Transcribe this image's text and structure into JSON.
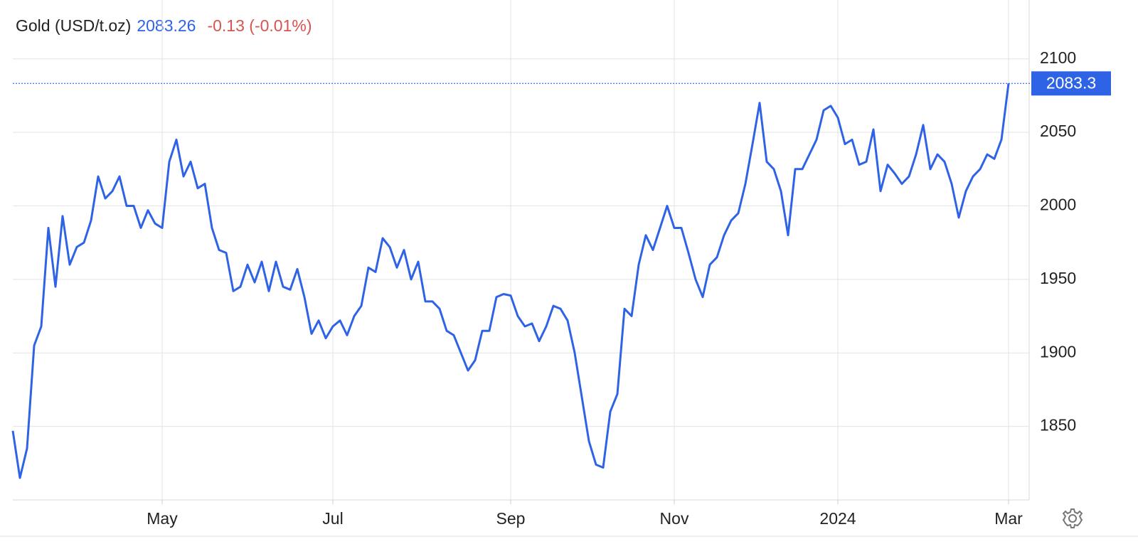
{
  "chart_data": {
    "type": "line",
    "title": "Gold (USD/t.oz)",
    "change": "-0.13 (-0.01%)",
    "categories": [
      null,
      null,
      null,
      null,
      null,
      null,
      null,
      null,
      null,
      null,
      null,
      null,
      null,
      null,
      null,
      null,
      null,
      null,
      null,
      null,
      null,
      "May",
      null,
      null,
      null,
      null,
      null,
      null,
      null,
      null,
      null,
      null,
      null,
      null,
      null,
      null,
      null,
      null,
      null,
      null,
      null,
      null,
      null,
      null,
      null,
      "Jul",
      null,
      null,
      null,
      null,
      null,
      null,
      null,
      null,
      null,
      null,
      null,
      null,
      null,
      null,
      null,
      null,
      null,
      null,
      null,
      null,
      null,
      null,
      null,
      null,
      "Sep",
      null,
      null,
      null,
      null,
      null,
      null,
      null,
      null,
      null,
      null,
      null,
      null,
      null,
      null,
      null,
      null,
      null,
      null,
      null,
      null,
      null,
      null,
      "Nov",
      null,
      null,
      null,
      null,
      null,
      null,
      null,
      null,
      null,
      null,
      null,
      null,
      null,
      null,
      null,
      null,
      null,
      null,
      null,
      null,
      null,
      null,
      "2024",
      null,
      null,
      null,
      null,
      null,
      null,
      null,
      null,
      null,
      null,
      null,
      null,
      null,
      null,
      null,
      null,
      null,
      null,
      null,
      null,
      null,
      null,
      null,
      "Mar"
    ],
    "series": [
      {
        "name": "Gold",
        "color": "#2f63e6",
        "values": [
          1847,
          1815,
          1835,
          1905,
          1918,
          1985,
          1945,
          1993,
          1960,
          1972,
          1975,
          1990,
          2020,
          2005,
          2010,
          2020,
          2000,
          2000,
          1985,
          1997,
          1988,
          1985,
          2030,
          2045,
          2020,
          2030,
          2012,
          2015,
          1985,
          1970,
          1968,
          1942,
          1945,
          1960,
          1948,
          1962,
          1942,
          1962,
          1945,
          1943,
          1957,
          1938,
          1913,
          1922,
          1910,
          1918,
          1922,
          1912,
          1925,
          1932,
          1958,
          1955,
          1978,
          1972,
          1958,
          1970,
          1950,
          1962,
          1935,
          1935,
          1930,
          1915,
          1912,
          1900,
          1888,
          1895,
          1915,
          1915,
          1938,
          1940,
          1939,
          1925,
          1918,
          1920,
          1908,
          1918,
          1932,
          1930,
          1922,
          1900,
          1870,
          1840,
          1824,
          1822,
          1860,
          1872,
          1930,
          1925,
          1960,
          1980,
          1970,
          1985,
          2000,
          1985,
          1985,
          1968,
          1950,
          1938,
          1960,
          1965,
          1980,
          1990,
          1995,
          2015,
          2042,
          2070,
          2030,
          2025,
          2010,
          1980,
          2025,
          2025,
          2035,
          2045,
          2065,
          2068,
          2060,
          2042,
          2045,
          2028,
          2030,
          2052,
          2010,
          2028,
          2022,
          2015,
          2020,
          2035,
          2055,
          2025,
          2035,
          2030,
          2015,
          1992,
          2010,
          2020,
          2025,
          2035,
          2032,
          2045,
          2083.26
        ],
        "value_labels": [
          null,
          null,
          null,
          null,
          null,
          null,
          null,
          null,
          null,
          null,
          null,
          null,
          null,
          null,
          null,
          null,
          null,
          null,
          null,
          null,
          null,
          null,
          null,
          null,
          null,
          null,
          null,
          null,
          null,
          null,
          null,
          null,
          null,
          null,
          null,
          null,
          null,
          null,
          null,
          null,
          null,
          null,
          null,
          null,
          null,
          null,
          null,
          null,
          null,
          null,
          null,
          null,
          null,
          null,
          null,
          null,
          null,
          null,
          null,
          null,
          null,
          null,
          null,
          null,
          null,
          null,
          null,
          null,
          null,
          null,
          null,
          null,
          null,
          null,
          null,
          null,
          null,
          null,
          null,
          null,
          null,
          null,
          null,
          null,
          null,
          null,
          null,
          null,
          null,
          null,
          null,
          null,
          null,
          null,
          null,
          null,
          null,
          null,
          null,
          null,
          null,
          null,
          null,
          null,
          null,
          null,
          null,
          null,
          null,
          null,
          null,
          null,
          null,
          null,
          null,
          null,
          null,
          null,
          null,
          null,
          null,
          null,
          null,
          null,
          null,
          null,
          null,
          null,
          null,
          null,
          null,
          null,
          null,
          null,
          null,
          null,
          null,
          null,
          null,
          null,
          "2083.3"
        ]
      }
    ],
    "ylim": [
      1800,
      2140
    ],
    "yticks": [
      1850,
      1900,
      1950,
      2000,
      2050,
      2100
    ],
    "grid": true
  }
}
